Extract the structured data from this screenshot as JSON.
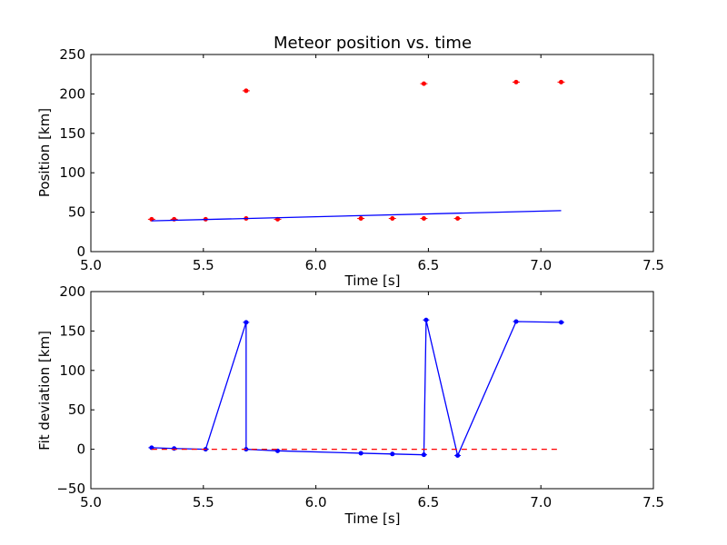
{
  "chart_data": [
    {
      "type": "scatter",
      "title": "Meteor position vs. time",
      "xlabel": "Time [s]",
      "ylabel": "Position [km]",
      "xlim": [
        5.0,
        7.5
      ],
      "ylim": [
        0,
        250
      ],
      "xticks": [
        "5.0",
        "5.5",
        "6.0",
        "6.5",
        "7.0",
        "7.5"
      ],
      "yticks": [
        "0",
        "50",
        "100",
        "150",
        "200",
        "250"
      ],
      "grid": false,
      "series": [
        {
          "style": "red-points-with-errorbars",
          "color": "#ff0000",
          "points": [
            {
              "x": 5.27,
              "y": 41
            },
            {
              "x": 5.37,
              "y": 41
            },
            {
              "x": 5.51,
              "y": 41
            },
            {
              "x": 5.69,
              "y": 42
            },
            {
              "x": 5.69,
              "y": 204
            },
            {
              "x": 5.83,
              "y": 41
            },
            {
              "x": 6.2,
              "y": 42
            },
            {
              "x": 6.34,
              "y": 42
            },
            {
              "x": 6.48,
              "y": 42
            },
            {
              "x": 6.48,
              "y": 213
            },
            {
              "x": 6.63,
              "y": 42
            },
            {
              "x": 6.89,
              "y": 215
            },
            {
              "x": 7.09,
              "y": 215
            }
          ]
        },
        {
          "style": "blue-fit-line",
          "color": "#0000ff",
          "points": [
            {
              "x": 5.27,
              "y": 39
            },
            {
              "x": 7.09,
              "y": 52
            }
          ]
        }
      ]
    },
    {
      "type": "line",
      "title": "",
      "xlabel": "Time [s]",
      "ylabel": "Fit deviation [km]",
      "xlim": [
        5.0,
        7.5
      ],
      "ylim": [
        -50,
        200
      ],
      "xticks": [
        "5.0",
        "5.5",
        "6.0",
        "6.5",
        "7.0",
        "7.5"
      ],
      "yticks": [
        "−50",
        "0",
        "50",
        "100",
        "150",
        "200"
      ],
      "grid": false,
      "series": [
        {
          "style": "blue-line-with-points",
          "color": "#0000ff",
          "points": [
            {
              "x": 5.27,
              "y": 2
            },
            {
              "x": 5.37,
              "y": 1
            },
            {
              "x": 5.51,
              "y": 0
            },
            {
              "x": 5.69,
              "y": 161
            },
            {
              "x": 5.69,
              "y": 0
            },
            {
              "x": 5.83,
              "y": -2
            },
            {
              "x": 6.2,
              "y": -5
            },
            {
              "x": 6.34,
              "y": -6
            },
            {
              "x": 6.48,
              "y": -7
            },
            {
              "x": 6.49,
              "y": 164
            },
            {
              "x": 6.63,
              "y": -8
            },
            {
              "x": 6.89,
              "y": 162
            },
            {
              "x": 7.09,
              "y": 161
            }
          ]
        },
        {
          "style": "red-dashed-zero-line",
          "color": "#ff0000",
          "points": [
            {
              "x": 5.27,
              "y": 0
            },
            {
              "x": 7.09,
              "y": 0
            }
          ]
        }
      ]
    }
  ]
}
